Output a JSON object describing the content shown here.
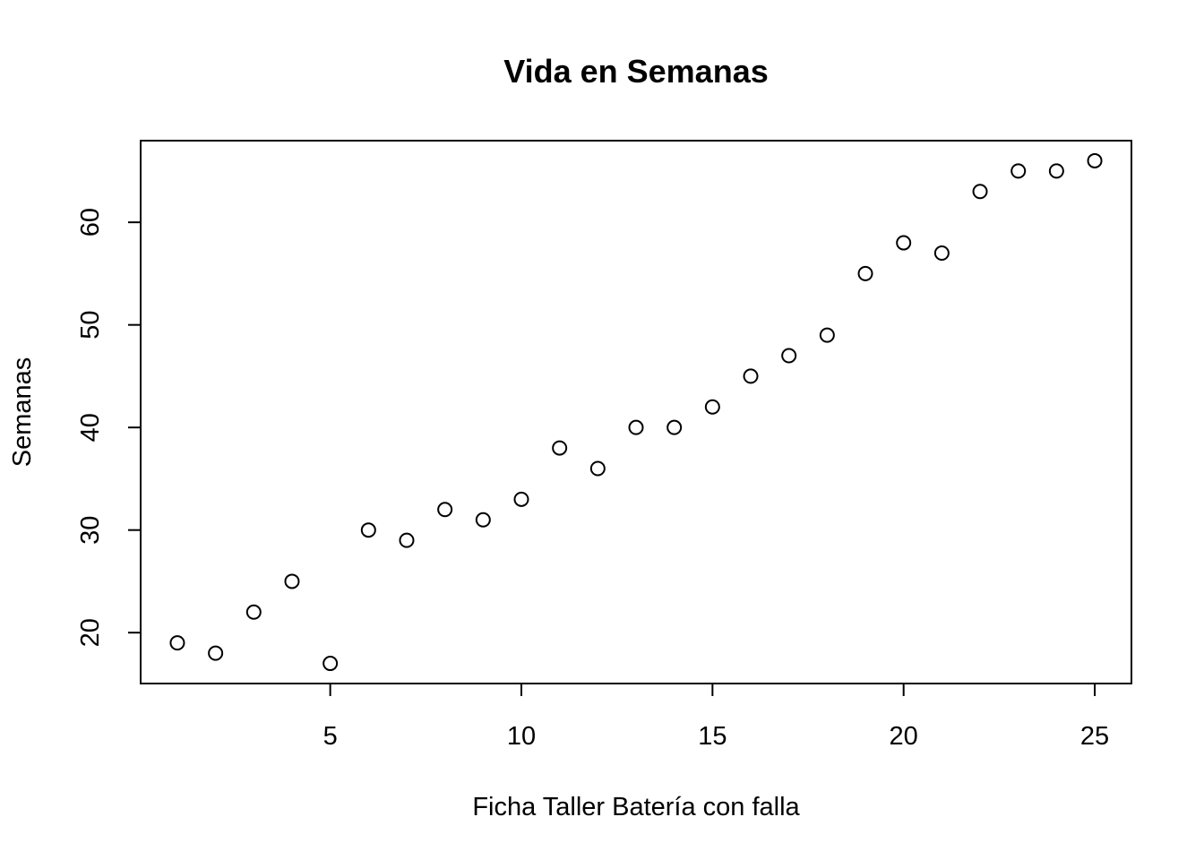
{
  "chart_data": {
    "type": "scatter",
    "title": "Vida en Semanas",
    "xlabel": "Ficha Taller Batería con falla",
    "ylabel": "Semanas",
    "x": [
      1,
      2,
      3,
      4,
      5,
      6,
      7,
      8,
      9,
      10,
      11,
      12,
      13,
      14,
      15,
      16,
      17,
      18,
      19,
      20,
      21,
      22,
      23,
      24,
      25
    ],
    "y": [
      19,
      18,
      22,
      25,
      17,
      30,
      29,
      32,
      31,
      33,
      38,
      36,
      40,
      40,
      42,
      45,
      47,
      49,
      55,
      58,
      57,
      63,
      65,
      65,
      66
    ],
    "xlim": [
      0.04,
      25.96
    ],
    "ylim": [
      15.04,
      67.96
    ],
    "x_ticks": [
      5,
      10,
      15,
      20,
      25
    ],
    "y_ticks": [
      20,
      30,
      40,
      50,
      60
    ],
    "marker": "open-circle",
    "grid": false,
    "legend": "none"
  }
}
